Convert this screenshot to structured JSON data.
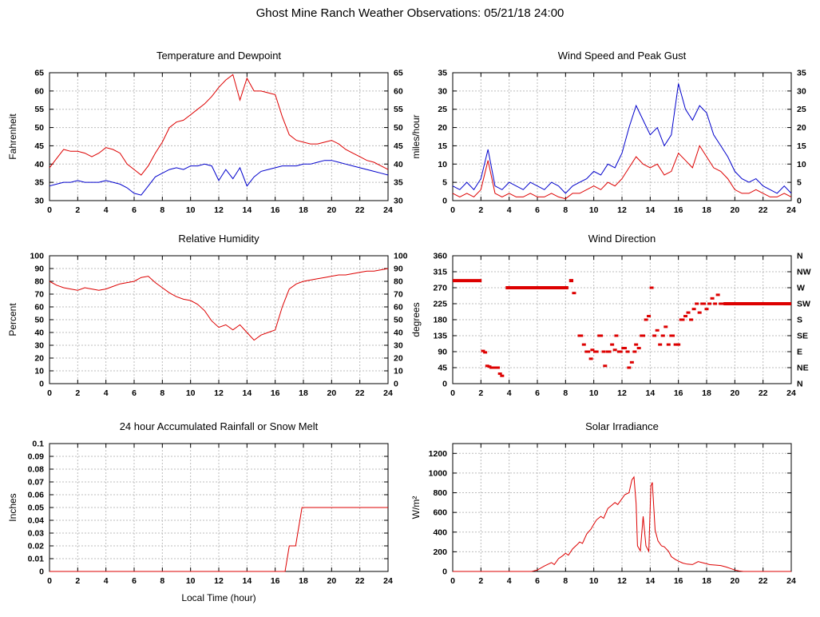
{
  "header": {
    "title": "Ghost Mine Ranch Weather Observations: 05/21/18 24:00"
  },
  "chart_data": [
    {
      "id": "temperature-dewpoint",
      "type": "line",
      "title": "Temperature and Dewpoint",
      "ylabel": "Fahrenheit",
      "xlim": [
        0,
        24
      ],
      "xticks": [
        0,
        2,
        4,
        6,
        8,
        10,
        12,
        14,
        16,
        18,
        20,
        22,
        24
      ],
      "ylim": [
        30,
        65
      ],
      "yticks": [
        30,
        35,
        40,
        45,
        50,
        55,
        60,
        65
      ],
      "right_axis": "mirror",
      "grid": true,
      "series": [
        {
          "name": "temperature",
          "color": "#dd0000",
          "x0": 0,
          "dx": 0.5,
          "values": [
            39,
            41.5,
            44,
            43.5,
            43.5,
            43,
            42,
            43,
            44.5,
            44,
            43,
            40,
            38.5,
            37,
            39.5,
            43,
            46,
            50,
            51.5,
            52,
            53.5,
            55,
            56.5,
            58.5,
            61,
            63,
            64.5,
            57.5,
            63.5,
            60,
            60,
            59.5,
            59,
            53,
            48,
            46.5,
            46,
            45.5,
            45.5,
            46,
            46.5,
            45.5,
            44,
            43,
            42,
            41,
            40.5,
            39.5,
            38.5
          ]
        },
        {
          "name": "dewpoint",
          "color": "#0000cc",
          "x0": 0,
          "dx": 0.5,
          "values": [
            34,
            34.5,
            35,
            35,
            35.5,
            35,
            35,
            35,
            35.5,
            35,
            34.5,
            33.5,
            32,
            31.5,
            34,
            36.5,
            37.5,
            38.5,
            39,
            38.5,
            39.5,
            39.5,
            40,
            39.5,
            35.5,
            38.5,
            36,
            39,
            34,
            36.5,
            38,
            38.5,
            39,
            39.5,
            39.5,
            39.5,
            40,
            40,
            40.5,
            41,
            41,
            40.5,
            40,
            39.5,
            39,
            38.5,
            38,
            37.5,
            37
          ]
        }
      ]
    },
    {
      "id": "wind-speed-gust",
      "type": "line",
      "title": "Wind Speed and Peak Gust",
      "ylabel": "miles/hour",
      "xlim": [
        0,
        24
      ],
      "xticks": [
        0,
        2,
        4,
        6,
        8,
        10,
        12,
        14,
        16,
        18,
        20,
        22,
        24
      ],
      "ylim": [
        0,
        35
      ],
      "yticks": [
        0,
        5,
        10,
        15,
        20,
        25,
        30,
        35
      ],
      "right_axis": "mirror",
      "grid": true,
      "series": [
        {
          "name": "peak-gust",
          "color": "#0000cc",
          "x0": 0,
          "dx": 0.5,
          "values": [
            4,
            3,
            5,
            3,
            6,
            14,
            4,
            3,
            5,
            4,
            3,
            5,
            4,
            3,
            5,
            4,
            2,
            4,
            5,
            6,
            8,
            7,
            10,
            9,
            13,
            20,
            26,
            22,
            18,
            20,
            15,
            18,
            32,
            25,
            22,
            26,
            24,
            18,
            15,
            12,
            8,
            6,
            5,
            6,
            4,
            3,
            2,
            4,
            2
          ]
        },
        {
          "name": "wind-speed",
          "color": "#dd0000",
          "x0": 0,
          "dx": 0.5,
          "values": [
            2,
            1,
            2,
            1,
            3,
            11,
            2,
            1,
            2,
            1,
            1,
            2,
            1,
            1,
            2,
            1,
            0.5,
            2,
            2,
            3,
            4,
            3,
            5,
            4,
            6,
            9,
            12,
            10,
            9,
            10,
            7,
            8,
            13,
            11,
            9,
            15,
            12,
            9,
            8,
            6,
            3,
            2,
            2,
            3,
            2,
            1,
            1,
            2,
            1
          ]
        }
      ]
    },
    {
      "id": "relative-humidity",
      "type": "line",
      "title": "Relative Humidity",
      "ylabel": "Percent",
      "xlim": [
        0,
        24
      ],
      "xticks": [
        0,
        2,
        4,
        6,
        8,
        10,
        12,
        14,
        16,
        18,
        20,
        22,
        24
      ],
      "ylim": [
        0,
        100
      ],
      "yticks": [
        0,
        10,
        20,
        30,
        40,
        50,
        60,
        70,
        80,
        90,
        100
      ],
      "right_axis": "mirror",
      "grid": true,
      "series": [
        {
          "name": "humidity",
          "color": "#dd0000",
          "x0": 0,
          "dx": 0.5,
          "values": [
            80,
            77,
            75,
            74,
            73,
            75,
            74,
            73,
            74,
            76,
            78,
            79,
            80,
            83,
            84,
            79,
            75,
            71,
            68,
            66,
            65,
            62,
            57,
            49,
            44,
            46,
            42,
            46,
            40,
            34,
            38,
            40,
            42,
            60,
            74,
            78,
            80,
            81,
            82,
            83,
            84,
            85,
            85,
            86,
            87,
            88,
            88,
            89,
            90
          ]
        }
      ]
    },
    {
      "id": "wind-direction",
      "type": "scatter",
      "title": "Wind Direction",
      "ylabel": "degrees",
      "xlim": [
        0,
        24
      ],
      "xticks": [
        0,
        2,
        4,
        6,
        8,
        10,
        12,
        14,
        16,
        18,
        20,
        22,
        24
      ],
      "ylim": [
        0,
        360
      ],
      "yticks": [
        0,
        45,
        90,
        135,
        180,
        225,
        270,
        315,
        360
      ],
      "right_axis": "labels",
      "right_labels": [
        "N",
        "NE",
        "E",
        "SE",
        "S",
        "SW",
        "W",
        "NW",
        "N"
      ],
      "grid": true,
      "marker_color": "#dd0000",
      "segments": [
        {
          "x1": 0,
          "x2": 2.05,
          "deg": 290
        },
        {
          "x1": 3.75,
          "x2": 8.2,
          "deg": 270
        },
        {
          "x1": 8.25,
          "x2": 8.55,
          "deg": 290
        },
        {
          "x1": 19.2,
          "x2": 24,
          "deg": 225
        }
      ],
      "points": [
        [
          2.15,
          92
        ],
        [
          2.3,
          88
        ],
        [
          2.45,
          50
        ],
        [
          2.6,
          48
        ],
        [
          2.75,
          45
        ],
        [
          2.9,
          45
        ],
        [
          3.05,
          45
        ],
        [
          3.2,
          45
        ],
        [
          3.35,
          28
        ],
        [
          3.5,
          22
        ],
        [
          8.6,
          255
        ],
        [
          9.0,
          135
        ],
        [
          9.1,
          135
        ],
        [
          9.3,
          110
        ],
        [
          9.5,
          90
        ],
        [
          9.6,
          90
        ],
        [
          9.8,
          70
        ],
        [
          9.9,
          95
        ],
        [
          10.1,
          90
        ],
        [
          10.2,
          90
        ],
        [
          10.4,
          135
        ],
        [
          10.5,
          135
        ],
        [
          10.7,
          90
        ],
        [
          10.8,
          50
        ],
        [
          11.0,
          90
        ],
        [
          11.1,
          90
        ],
        [
          11.3,
          110
        ],
        [
          11.5,
          95
        ],
        [
          11.6,
          135
        ],
        [
          11.8,
          90
        ],
        [
          11.9,
          90
        ],
        [
          12.1,
          100
        ],
        [
          12.2,
          100
        ],
        [
          12.4,
          90
        ],
        [
          12.5,
          45
        ],
        [
          12.7,
          60
        ],
        [
          12.9,
          90
        ],
        [
          13.0,
          110
        ],
        [
          13.2,
          100
        ],
        [
          13.4,
          135
        ],
        [
          13.5,
          135
        ],
        [
          13.7,
          180
        ],
        [
          13.9,
          190
        ],
        [
          14.1,
          270
        ],
        [
          14.3,
          135
        ],
        [
          14.5,
          150
        ],
        [
          14.7,
          110
        ],
        [
          14.9,
          135
        ],
        [
          15.1,
          160
        ],
        [
          15.3,
          110
        ],
        [
          15.5,
          135
        ],
        [
          15.6,
          135
        ],
        [
          15.8,
          110
        ],
        [
          16.0,
          110
        ],
        [
          16.2,
          180
        ],
        [
          16.3,
          180
        ],
        [
          16.5,
          190
        ],
        [
          16.7,
          200
        ],
        [
          16.9,
          180
        ],
        [
          17.1,
          210
        ],
        [
          17.3,
          225
        ],
        [
          17.5,
          200
        ],
        [
          17.7,
          225
        ],
        [
          17.8,
          225
        ],
        [
          18.0,
          210
        ],
        [
          18.2,
          225
        ],
        [
          18.4,
          240
        ],
        [
          18.6,
          225
        ],
        [
          18.8,
          250
        ],
        [
          19.0,
          225
        ],
        [
          19.1,
          225
        ]
      ]
    },
    {
      "id": "rainfall",
      "type": "line",
      "title": "24 hour Accumulated Rainfall or Snow Melt",
      "ylabel": "Inches",
      "xlabel": "Local Time (hour)",
      "xlim": [
        0,
        24
      ],
      "xticks": [
        0,
        2,
        4,
        6,
        8,
        10,
        12,
        14,
        16,
        18,
        20,
        22,
        24
      ],
      "ylim": [
        0,
        0.1
      ],
      "yticks": [
        0,
        0.01,
        0.02,
        0.03,
        0.04,
        0.05,
        0.06,
        0.07,
        0.08,
        0.09,
        0.1
      ],
      "ytick_labels": [
        "0",
        "0.01",
        "0.02",
        "0.03",
        "0.04",
        "0.05",
        "0.06",
        "0.07",
        "0.08",
        "0.09",
        "0.1"
      ],
      "right_axis": "none",
      "grid": true,
      "series": [
        {
          "name": "rainfall",
          "color": "#dd0000",
          "points": [
            [
              0,
              0
            ],
            [
              16.7,
              0
            ],
            [
              16.85,
              0.01
            ],
            [
              17.0,
              0.02
            ],
            [
              17.45,
              0.02
            ],
            [
              17.6,
              0.03
            ],
            [
              17.75,
              0.04
            ],
            [
              17.9,
              0.05
            ],
            [
              24,
              0.05
            ]
          ]
        }
      ]
    },
    {
      "id": "solar-irradiance",
      "type": "line",
      "title": "Solar Irradiance",
      "ylabel": "W/m²",
      "xlim": [
        0,
        24
      ],
      "xticks": [
        0,
        2,
        4,
        6,
        8,
        10,
        12,
        14,
        16,
        18,
        20,
        22,
        24
      ],
      "ylim": [
        0,
        1300
      ],
      "yticks": [
        0,
        200,
        400,
        600,
        800,
        1000,
        1200
      ],
      "right_axis": "none",
      "grid": true,
      "series": [
        {
          "name": "solar",
          "color": "#dd0000",
          "points": [
            [
              0,
              0
            ],
            [
              5.6,
              0
            ],
            [
              6,
              15
            ],
            [
              6.5,
              55
            ],
            [
              7,
              90
            ],
            [
              7.2,
              70
            ],
            [
              7.5,
              130
            ],
            [
              7.8,
              160
            ],
            [
              8,
              185
            ],
            [
              8.2,
              165
            ],
            [
              8.5,
              230
            ],
            [
              8.8,
              270
            ],
            [
              9,
              300
            ],
            [
              9.2,
              285
            ],
            [
              9.5,
              380
            ],
            [
              9.8,
              430
            ],
            [
              10,
              480
            ],
            [
              10.2,
              525
            ],
            [
              10.5,
              560
            ],
            [
              10.7,
              540
            ],
            [
              11,
              640
            ],
            [
              11.2,
              665
            ],
            [
              11.5,
              700
            ],
            [
              11.7,
              680
            ],
            [
              12,
              740
            ],
            [
              12.2,
              780
            ],
            [
              12.5,
              800
            ],
            [
              12.7,
              930
            ],
            [
              12.85,
              960
            ],
            [
              13,
              690
            ],
            [
              13.1,
              260
            ],
            [
              13.3,
              210
            ],
            [
              13.5,
              560
            ],
            [
              13.7,
              260
            ],
            [
              13.9,
              205
            ],
            [
              14.05,
              870
            ],
            [
              14.15,
              905
            ],
            [
              14.35,
              420
            ],
            [
              14.55,
              310
            ],
            [
              14.8,
              260
            ],
            [
              15,
              250
            ],
            [
              15.3,
              205
            ],
            [
              15.5,
              150
            ],
            [
              15.8,
              120
            ],
            [
              16,
              105
            ],
            [
              16.3,
              85
            ],
            [
              16.6,
              75
            ],
            [
              17,
              70
            ],
            [
              17.4,
              100
            ],
            [
              17.8,
              85
            ],
            [
              18.2,
              70
            ],
            [
              18.6,
              65
            ],
            [
              19,
              60
            ],
            [
              19.4,
              45
            ],
            [
              19.7,
              30
            ],
            [
              20,
              15
            ],
            [
              20.3,
              5
            ],
            [
              20.6,
              0
            ],
            [
              24,
              0
            ]
          ]
        }
      ]
    }
  ]
}
